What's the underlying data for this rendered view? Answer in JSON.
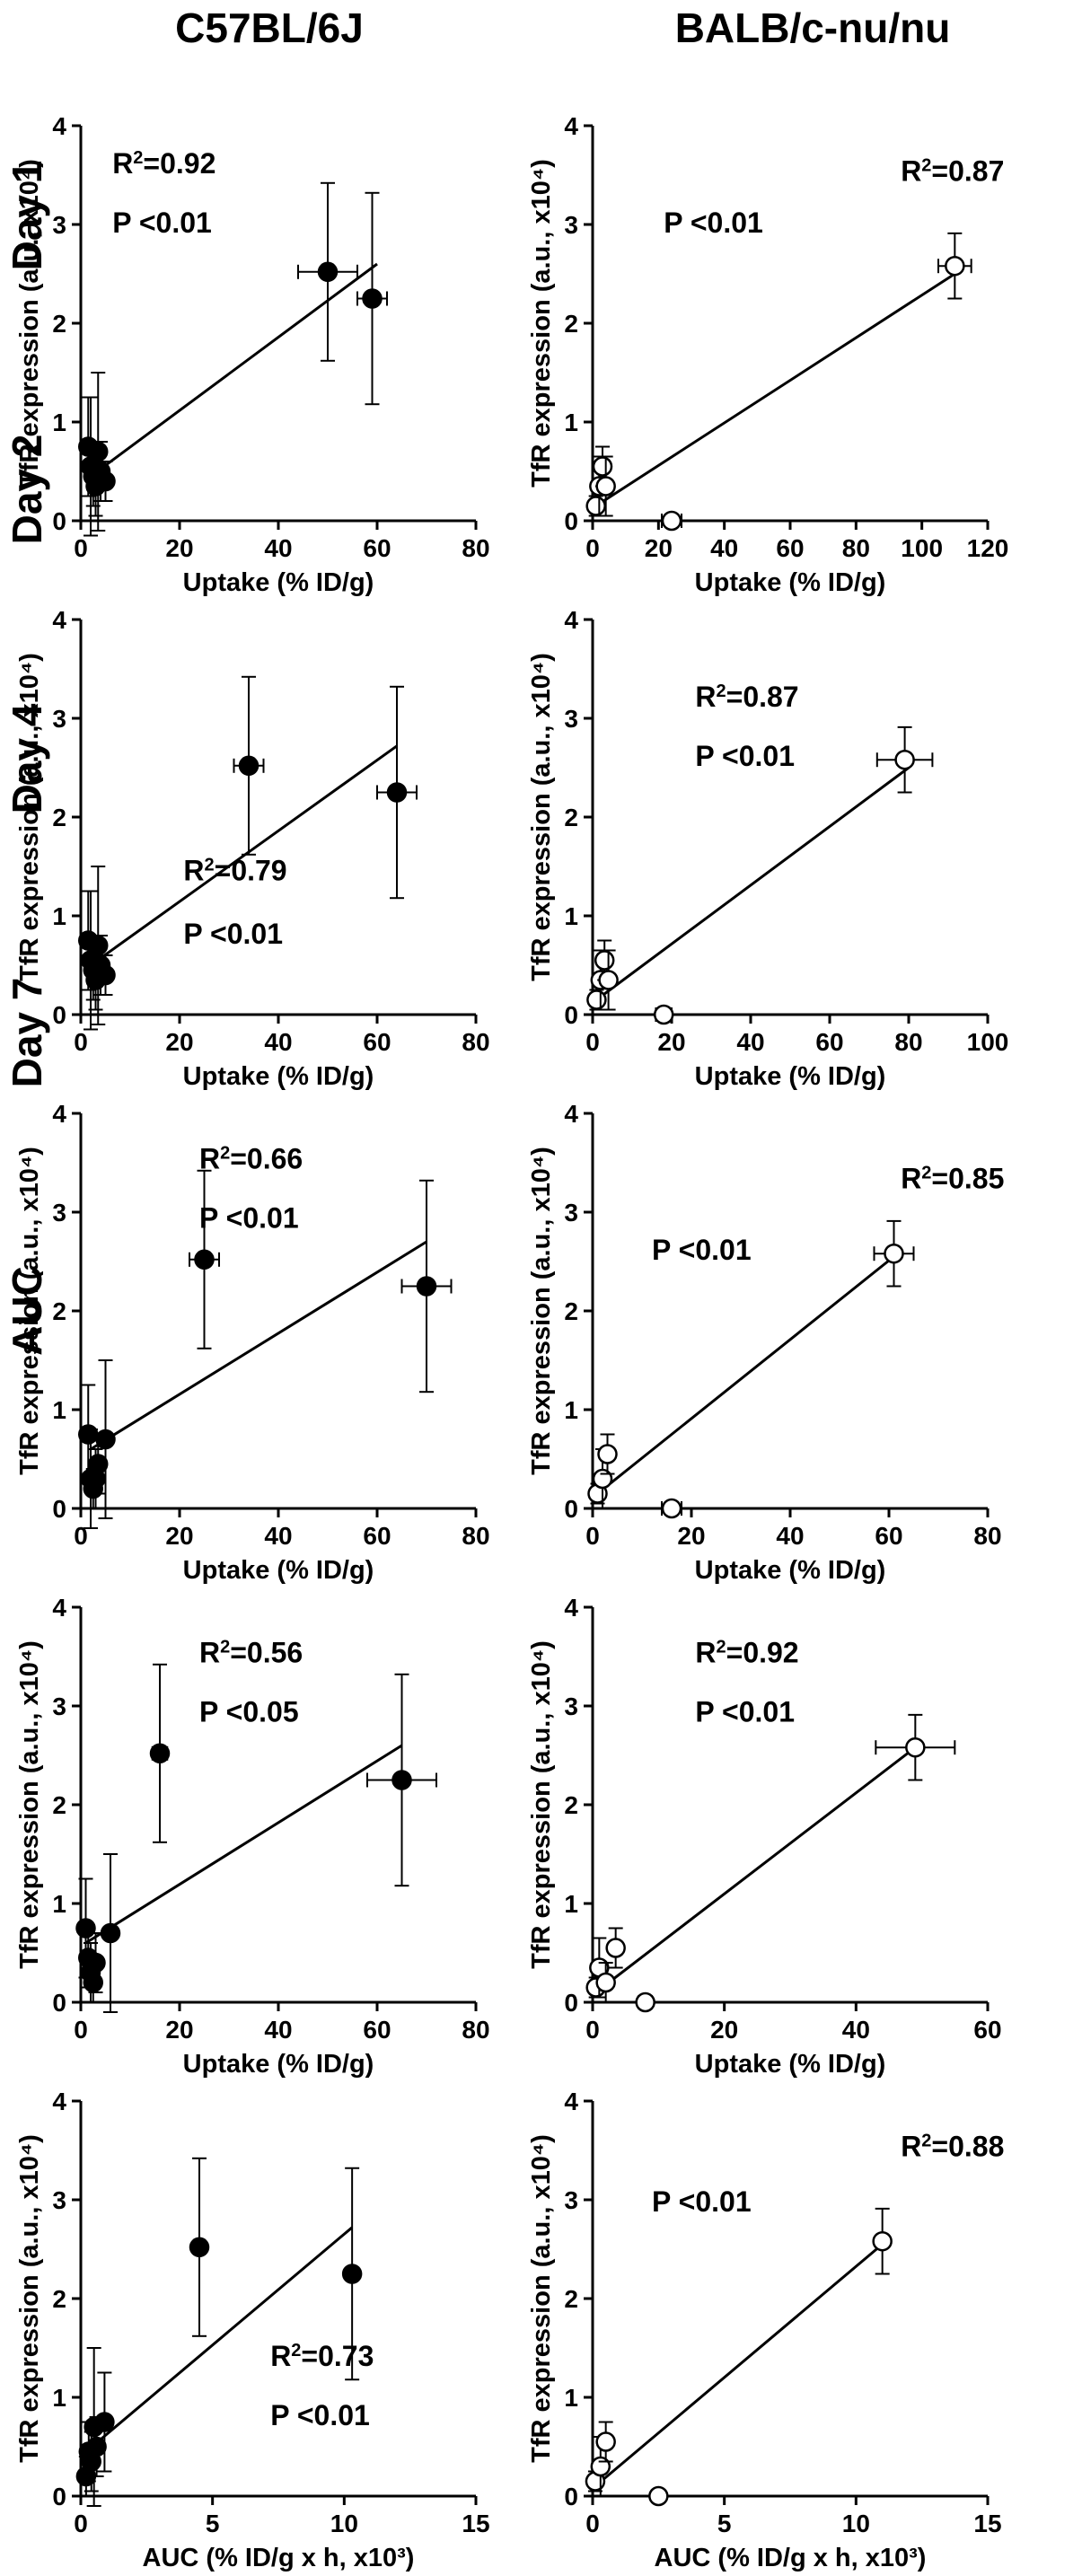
{
  "column_titles": [
    "C57BL/6J",
    "BALB/c-nu/nu"
  ],
  "row_titles": [
    "Day 1",
    "Day 2",
    "Day 4",
    "Day 7",
    "AUC"
  ],
  "chart_data": [
    {
      "type": "scatter",
      "row": 0,
      "col": 0,
      "marker": "filled",
      "ylabel": "TfR expression (a.u., x10⁴)",
      "xlabel": "Uptake (% ID/g)",
      "xlim": [
        0,
        80
      ],
      "ylim": [
        0,
        4
      ],
      "xticks": [
        0,
        20,
        40,
        60,
        80
      ],
      "yticks": [
        0,
        1,
        2,
        3,
        4
      ],
      "r2_label": "R",
      "r2_value": "=0.92",
      "p_text": "P <0.01",
      "fit": {
        "x": [
          2,
          60
        ],
        "y": [
          0.45,
          2.6
        ]
      },
      "points": [
        {
          "x": 1.5,
          "y": 0.75,
          "yerr": 0.5,
          "xerr": 0
        },
        {
          "x": 2,
          "y": 0.55,
          "yerr": 0.7,
          "xerr": 0
        },
        {
          "x": 2.5,
          "y": 0.45,
          "yerr": 0.3,
          "xerr": 0
        },
        {
          "x": 3,
          "y": 0.35,
          "yerr": 0.3,
          "xerr": 0
        },
        {
          "x": 3.5,
          "y": 0.7,
          "yerr": 0.8,
          "xerr": 0
        },
        {
          "x": 4,
          "y": 0.5,
          "yerr": 0.3,
          "xerr": 0
        },
        {
          "x": 5,
          "y": 0.4,
          "yerr": 0.2,
          "xerr": 0
        },
        {
          "x": 50,
          "y": 2.52,
          "yerr": 0.9,
          "xerr": 6
        },
        {
          "x": 59,
          "y": 2.25,
          "yerr": 1.07,
          "xerr": 3
        }
      ]
    },
    {
      "type": "scatter",
      "row": 0,
      "col": 1,
      "marker": "open",
      "ylabel": "TfR expression (a.u., x10⁴)",
      "xlabel": "Uptake (% ID/g)",
      "xlim": [
        0,
        120
      ],
      "ylim": [
        0,
        4
      ],
      "xticks": [
        0,
        20,
        40,
        60,
        80,
        100,
        120
      ],
      "yticks": [
        0,
        1,
        2,
        3,
        4
      ],
      "r2_label": "R",
      "r2_value": "=0.87",
      "p_text": "P <0.01",
      "fit": {
        "x": [
          1,
          110
        ],
        "y": [
          0.15,
          2.5
        ]
      },
      "points": [
        {
          "x": 1,
          "y": 0.15,
          "yerr": 0.1,
          "xerr": 0
        },
        {
          "x": 2,
          "y": 0.35,
          "yerr": 0.3,
          "xerr": 0
        },
        {
          "x": 3,
          "y": 0.55,
          "yerr": 0.2,
          "xerr": 0
        },
        {
          "x": 4,
          "y": 0.35,
          "yerr": 0.3,
          "xerr": 0
        },
        {
          "x": 24,
          "y": 0.0,
          "yerr": 0,
          "xerr": 3
        },
        {
          "x": 110,
          "y": 2.58,
          "yerr": 0.33,
          "xerr": 5
        }
      ]
    },
    {
      "type": "scatter",
      "row": 1,
      "col": 0,
      "marker": "filled",
      "ylabel": "TfR expression (a.u., x10⁴)",
      "xlabel": "Uptake (% ID/g)",
      "xlim": [
        0,
        80
      ],
      "ylim": [
        0,
        4
      ],
      "xticks": [
        0,
        20,
        40,
        60,
        80
      ],
      "yticks": [
        0,
        1,
        2,
        3,
        4
      ],
      "r2_label": "R",
      "r2_value": "=0.79",
      "p_text": "P <0.01",
      "fit": {
        "x": [
          2,
          64
        ],
        "y": [
          0.5,
          2.72
        ]
      },
      "points": [
        {
          "x": 1.5,
          "y": 0.75,
          "yerr": 0.5,
          "xerr": 0
        },
        {
          "x": 2,
          "y": 0.55,
          "yerr": 0.7,
          "xerr": 0
        },
        {
          "x": 2.5,
          "y": 0.45,
          "yerr": 0.3,
          "xerr": 0
        },
        {
          "x": 3,
          "y": 0.35,
          "yerr": 0.3,
          "xerr": 0
        },
        {
          "x": 3.5,
          "y": 0.7,
          "yerr": 0.8,
          "xerr": 0
        },
        {
          "x": 4,
          "y": 0.5,
          "yerr": 0.3,
          "xerr": 0
        },
        {
          "x": 5,
          "y": 0.4,
          "yerr": 0.2,
          "xerr": 0
        },
        {
          "x": 34,
          "y": 2.52,
          "yerr": 0.9,
          "xerr": 3
        },
        {
          "x": 64,
          "y": 2.25,
          "yerr": 1.07,
          "xerr": 4
        }
      ]
    },
    {
      "type": "scatter",
      "row": 1,
      "col": 1,
      "marker": "open",
      "ylabel": "TfR expression (a.u., x10⁴)",
      "xlabel": "Uptake (% ID/g)",
      "xlim": [
        0,
        100
      ],
      "ylim": [
        0,
        4
      ],
      "xticks": [
        0,
        20,
        40,
        60,
        80,
        100
      ],
      "yticks": [
        0,
        1,
        2,
        3,
        4
      ],
      "r2_label": "R",
      "r2_value": "=0.87",
      "p_text": "P <0.01",
      "fit": {
        "x": [
          1,
          80
        ],
        "y": [
          0.15,
          2.5
        ]
      },
      "points": [
        {
          "x": 1,
          "y": 0.15,
          "yerr": 0.1,
          "xerr": 0
        },
        {
          "x": 2,
          "y": 0.35,
          "yerr": 0.3,
          "xerr": 0
        },
        {
          "x": 3,
          "y": 0.55,
          "yerr": 0.2,
          "xerr": 0
        },
        {
          "x": 4,
          "y": 0.35,
          "yerr": 0.3,
          "xerr": 0
        },
        {
          "x": 18,
          "y": 0.0,
          "yerr": 0,
          "xerr": 2
        },
        {
          "x": 79,
          "y": 2.58,
          "yerr": 0.33,
          "xerr": 7
        }
      ]
    },
    {
      "type": "scatter",
      "row": 2,
      "col": 0,
      "marker": "filled",
      "ylabel": "TfR expression (a.u., x10⁴)",
      "xlabel": "Uptake (% ID/g)",
      "xlim": [
        0,
        80
      ],
      "ylim": [
        0,
        4
      ],
      "xticks": [
        0,
        20,
        40,
        60,
        80
      ],
      "yticks": [
        0,
        1,
        2,
        3,
        4
      ],
      "r2_label": "R",
      "r2_value": "=0.66",
      "p_text": "P <0.01",
      "fit": {
        "x": [
          2,
          70
        ],
        "y": [
          0.6,
          2.7
        ]
      },
      "points": [
        {
          "x": 1.5,
          "y": 0.75,
          "yerr": 0.5,
          "xerr": 0
        },
        {
          "x": 2,
          "y": 0.3,
          "yerr": 0.5,
          "xerr": 0
        },
        {
          "x": 2.5,
          "y": 0.2,
          "yerr": 0.2,
          "xerr": 0
        },
        {
          "x": 3,
          "y": 0.3,
          "yerr": 0.3,
          "xerr": 0
        },
        {
          "x": 3.5,
          "y": 0.45,
          "yerr": 0.3,
          "xerr": 0
        },
        {
          "x": 5,
          "y": 0.7,
          "yerr": 0.8,
          "xerr": 0
        },
        {
          "x": 25,
          "y": 2.52,
          "yerr": 0.9,
          "xerr": 3
        },
        {
          "x": 70,
          "y": 2.25,
          "yerr": 1.07,
          "xerr": 5
        }
      ]
    },
    {
      "type": "scatter",
      "row": 2,
      "col": 1,
      "marker": "open",
      "ylabel": "TfR expression (a.u., x10⁴)",
      "xlabel": "Uptake (% ID/g)",
      "xlim": [
        0,
        80
      ],
      "ylim": [
        0,
        4
      ],
      "xticks": [
        0,
        20,
        40,
        60,
        80
      ],
      "yticks": [
        0,
        1,
        2,
        3,
        4
      ],
      "r2_label": "R",
      "r2_value": "=0.85",
      "p_text": "P <0.01",
      "fit": {
        "x": [
          1,
          61
        ],
        "y": [
          0.15,
          2.55
        ]
      },
      "points": [
        {
          "x": 1,
          "y": 0.15,
          "yerr": 0.1,
          "xerr": 0
        },
        {
          "x": 2,
          "y": 0.3,
          "yerr": 0.3,
          "xerr": 0
        },
        {
          "x": 3,
          "y": 0.55,
          "yerr": 0.2,
          "xerr": 0
        },
        {
          "x": 16,
          "y": 0.0,
          "yerr": 0,
          "xerr": 2
        },
        {
          "x": 61,
          "y": 2.58,
          "yerr": 0.33,
          "xerr": 4
        }
      ]
    },
    {
      "type": "scatter",
      "row": 3,
      "col": 0,
      "marker": "filled",
      "ylabel": "TfR expression (a.u., x10⁴)",
      "xlabel": "Uptake (% ID/g)",
      "xlim": [
        0,
        80
      ],
      "ylim": [
        0,
        4
      ],
      "xticks": [
        0,
        20,
        40,
        60,
        80
      ],
      "yticks": [
        0,
        1,
        2,
        3,
        4
      ],
      "r2_label": "R",
      "r2_value": "=0.56",
      "p_text": "P <0.05",
      "fit": {
        "x": [
          1,
          65
        ],
        "y": [
          0.6,
          2.6
        ]
      },
      "points": [
        {
          "x": 1,
          "y": 0.75,
          "yerr": 0.5,
          "xerr": 0
        },
        {
          "x": 1.5,
          "y": 0.45,
          "yerr": 0.3,
          "xerr": 0
        },
        {
          "x": 2,
          "y": 0.3,
          "yerr": 0.3,
          "xerr": 0
        },
        {
          "x": 2.5,
          "y": 0.2,
          "yerr": 0.2,
          "xerr": 0
        },
        {
          "x": 3,
          "y": 0.4,
          "yerr": 0.3,
          "xerr": 0
        },
        {
          "x": 6,
          "y": 0.7,
          "yerr": 0.8,
          "xerr": 0
        },
        {
          "x": 16,
          "y": 2.52,
          "yerr": 0.9,
          "xerr": 1.5
        },
        {
          "x": 65,
          "y": 2.25,
          "yerr": 1.07,
          "xerr": 7
        }
      ]
    },
    {
      "type": "scatter",
      "row": 3,
      "col": 1,
      "marker": "open",
      "ylabel": "TfR expression (a.u., x10⁴)",
      "xlabel": "Uptake (% ID/g)",
      "xlim": [
        0,
        60
      ],
      "ylim": [
        0,
        4
      ],
      "xticks": [
        0,
        20,
        40,
        60
      ],
      "yticks": [
        0,
        1,
        2,
        3,
        4
      ],
      "r2_label": "R",
      "r2_value": "=0.92",
      "p_text": "P <0.01",
      "fit": {
        "x": [
          0.5,
          49
        ],
        "y": [
          0.1,
          2.58
        ]
      },
      "points": [
        {
          "x": 0.5,
          "y": 0.15,
          "yerr": 0.1,
          "xerr": 0
        },
        {
          "x": 1,
          "y": 0.35,
          "yerr": 0.3,
          "xerr": 0
        },
        {
          "x": 2,
          "y": 0.2,
          "yerr": 0.2,
          "xerr": 0
        },
        {
          "x": 3.5,
          "y": 0.55,
          "yerr": 0.2,
          "xerr": 0
        },
        {
          "x": 8,
          "y": 0.0,
          "yerr": 0,
          "xerr": 1
        },
        {
          "x": 49,
          "y": 2.58,
          "yerr": 0.33,
          "xerr": 6
        }
      ]
    },
    {
      "type": "scatter",
      "row": 4,
      "col": 0,
      "marker": "filled",
      "ylabel": "TfR expression (a.u., x10⁴)",
      "xlabel": "AUC (% ID/g x h, x10³)",
      "xlim": [
        0,
        15
      ],
      "ylim": [
        0,
        4
      ],
      "xticks": [
        0,
        5,
        10,
        15
      ],
      "yticks": [
        0,
        1,
        2,
        3,
        4
      ],
      "r2_label": "R",
      "r2_value": "=0.73",
      "p_text": "P <0.01",
      "fit": {
        "x": [
          0.2,
          10.3
        ],
        "y": [
          0.45,
          2.72
        ]
      },
      "points": [
        {
          "x": 0.2,
          "y": 0.2,
          "yerr": 0.2,
          "xerr": 0
        },
        {
          "x": 0.3,
          "y": 0.45,
          "yerr": 0.3,
          "xerr": 0
        },
        {
          "x": 0.4,
          "y": 0.35,
          "yerr": 0.3,
          "xerr": 0
        },
        {
          "x": 0.5,
          "y": 0.7,
          "yerr": 0.8,
          "xerr": 0
        },
        {
          "x": 0.6,
          "y": 0.5,
          "yerr": 0.3,
          "xerr": 0
        },
        {
          "x": 0.9,
          "y": 0.75,
          "yerr": 0.5,
          "xerr": 0
        },
        {
          "x": 4.5,
          "y": 2.52,
          "yerr": 0.9,
          "xerr": 0
        },
        {
          "x": 10.3,
          "y": 2.25,
          "yerr": 1.07,
          "xerr": 0
        }
      ]
    },
    {
      "type": "scatter",
      "row": 4,
      "col": 1,
      "marker": "open",
      "ylabel": "TfR expression (a.u., x10⁴)",
      "xlabel": "AUC (% ID/g x h, x10³)",
      "xlim": [
        0,
        15
      ],
      "ylim": [
        0,
        4
      ],
      "xticks": [
        0,
        5,
        10,
        15
      ],
      "yticks": [
        0,
        1,
        2,
        3,
        4
      ],
      "r2_label": "R",
      "r2_value": "=0.88",
      "p_text": "P <0.01",
      "fit": {
        "x": [
          0.1,
          11
        ],
        "y": [
          0.1,
          2.55
        ]
      },
      "points": [
        {
          "x": 0.1,
          "y": 0.15,
          "yerr": 0.1,
          "xerr": 0
        },
        {
          "x": 0.3,
          "y": 0.3,
          "yerr": 0.3,
          "xerr": 0
        },
        {
          "x": 0.5,
          "y": 0.55,
          "yerr": 0.2,
          "xerr": 0
        },
        {
          "x": 2.5,
          "y": 0.0,
          "yerr": 0,
          "xerr": 0
        },
        {
          "x": 11,
          "y": 2.58,
          "yerr": 0.33,
          "xerr": 0
        }
      ]
    }
  ]
}
